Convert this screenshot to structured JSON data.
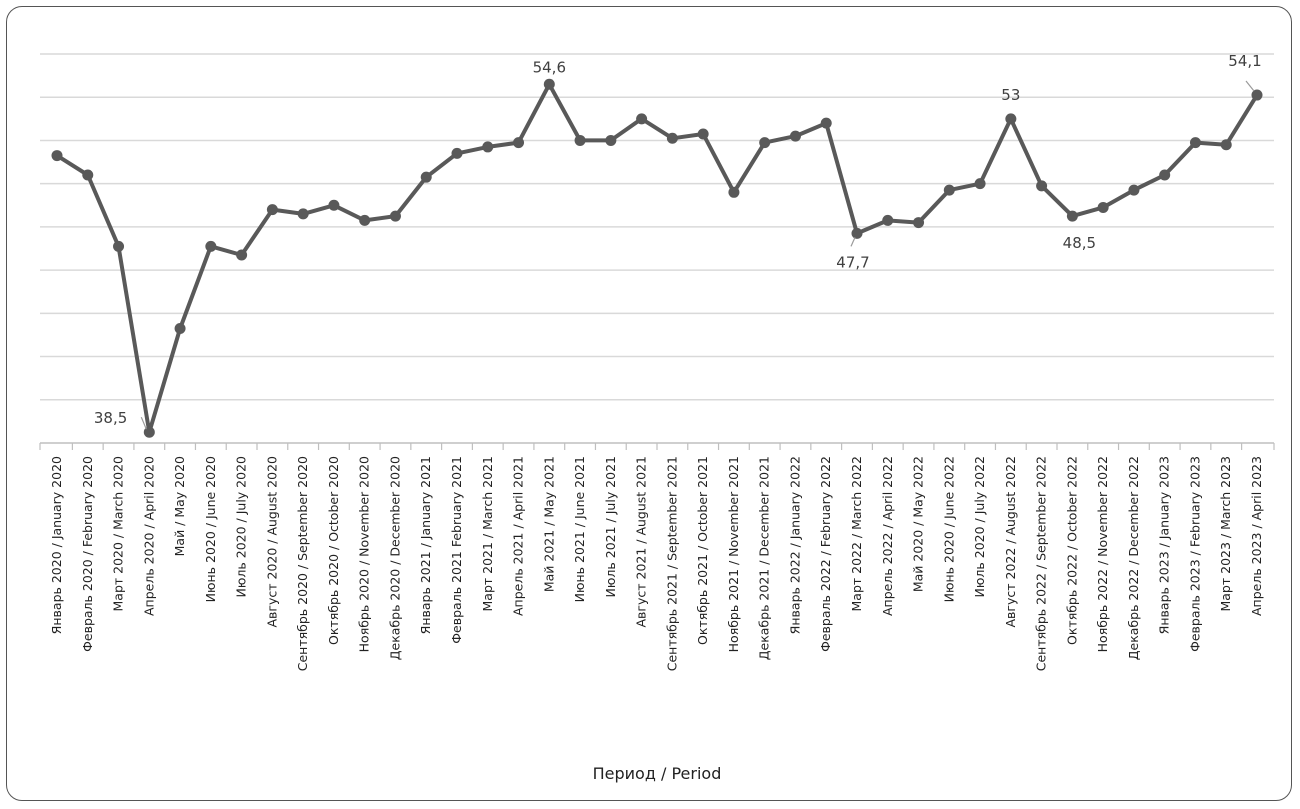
{
  "chart_data": {
    "type": "line",
    "xlabel": "Период / Period",
    "ylabel": "",
    "ylim": [
      38,
      56
    ],
    "grid": true,
    "colors": {
      "line": "#595959",
      "grid": "#d9d9d9",
      "axis": "#bfbfbf",
      "border": "#555555"
    },
    "categories": [
      "Январь 2020 / January 2020",
      "Февраль 2020 / February 2020",
      "Март 2020 / March 2020",
      "Апрель 2020 / April 2020",
      "Май / May 2020",
      "Июнь 2020 / June 2020",
      "Июль 2020 / July 2020",
      "Август 2020 / August 2020",
      "Сентябрь 2020 / September 2020",
      "Октябрь 2020 / October 2020",
      "Ноябрь 2020 / November 2020",
      "Декабрь 2020 / December 2020",
      "Январь 2021 / January 2021",
      "Февраль 2021 February 2021",
      "Март 2021 / March 2021",
      "Апрель 2021 / April 2021",
      "Май 2021 / May 2021",
      "Июнь 2021 / June 2021",
      "Июль 2021 / July 2021",
      "Август 2021 / August 2021",
      "Сентябрь 2021 / September 2021",
      "Октябрь 2021 / October 2021",
      "Ноябрь 2021 / November 2021",
      "Декабрь 2021 / December 2021",
      "Январь 2022 / January 2022",
      "Февраль 2022 / February 2022",
      "Март 2022 / March 2022",
      "Апрель 2022 / April 2022",
      "Май 2020 / May 2022",
      "Июнь 2020 / June 2022",
      "Июль 2020 / July 2022",
      "Август 2022 / August 2022",
      "Сентябрь 2022 / September 2022",
      "Октябрь 2022 / October 2022",
      "Ноябрь 2022 / November 2022",
      "Декабрь 2022 / December 2022",
      "Январь 2023 / January 2023",
      "Февраль 2023 / February 2023",
      "Март 2023 / March 2023",
      "Апрель 2023 / April 2023"
    ],
    "series": [
      {
        "values": [
          51.3,
          50.4,
          47.1,
          38.5,
          43.3,
          47.1,
          46.7,
          48.8,
          48.6,
          49.0,
          48.3,
          48.5,
          50.3,
          51.4,
          51.7,
          51.9,
          54.6,
          52.0,
          52.0,
          53.0,
          52.1,
          52.3,
          49.6,
          51.9,
          52.2,
          52.8,
          47.7,
          48.3,
          48.2,
          49.7,
          50.0,
          53.0,
          49.9,
          48.5,
          48.9,
          49.7,
          50.4,
          51.9,
          51.8,
          54.1
        ]
      }
    ],
    "data_labels": [
      {
        "index": 3,
        "text": "38,5"
      },
      {
        "index": 16,
        "text": "54,6"
      },
      {
        "index": 26,
        "text": "47,7"
      },
      {
        "index": 31,
        "text": "53"
      },
      {
        "index": 33,
        "text": "48,5"
      },
      {
        "index": 39,
        "text": "54,1"
      }
    ]
  }
}
